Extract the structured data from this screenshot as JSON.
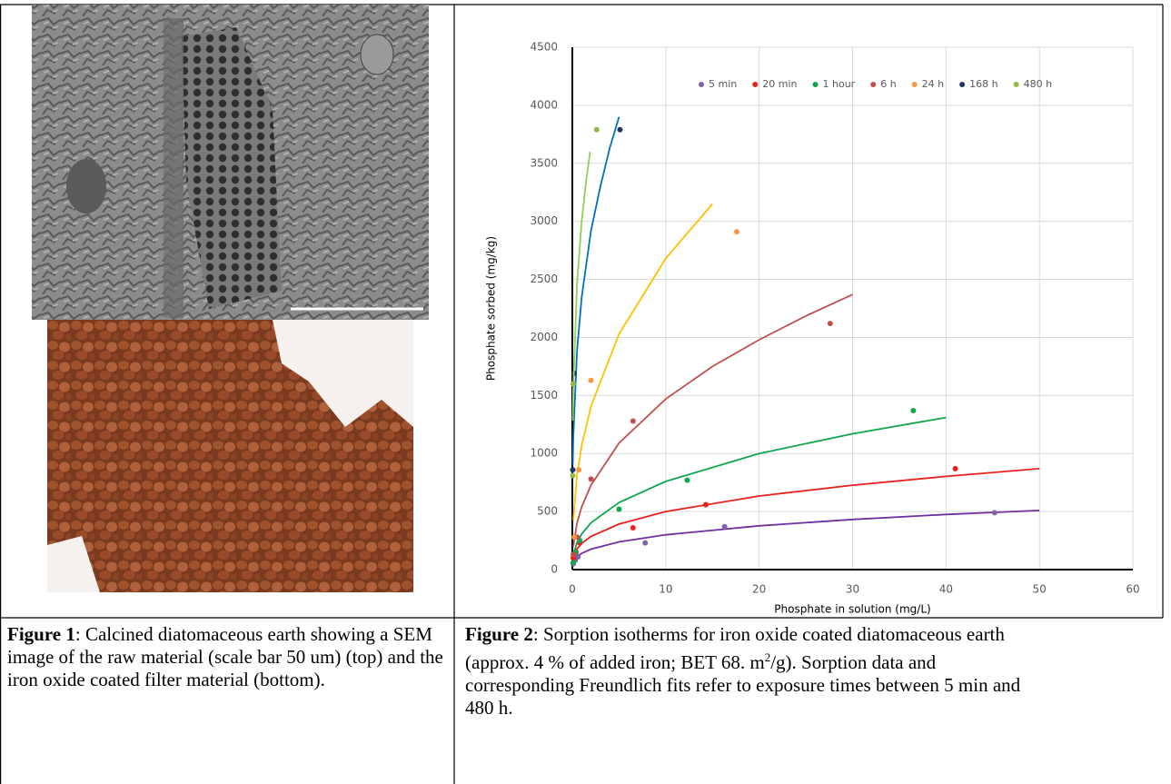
{
  "chart_data": {
    "type": "scatter",
    "xlabel": "Phosphate in solution (mg/L)",
    "ylabel": "Phosphate sorbed (mg/kg)",
    "xlim": [
      0,
      60
    ],
    "xticks": [
      0,
      10,
      20,
      30,
      40,
      50,
      60
    ],
    "ylim": [
      0,
      4500
    ],
    "yticks": [
      0,
      500,
      1000,
      1500,
      2000,
      2500,
      3000,
      3500,
      4000,
      4500
    ],
    "grid": true,
    "legend": "top-right",
    "series": [
      {
        "name": "5 min",
        "color": "#7f62a8",
        "x": [
          0.1,
          0.3,
          0.6,
          7.8,
          16.3,
          45.2
        ],
        "values": [
          50,
          80,
          110,
          230,
          370,
          490
        ],
        "fit": {
          "color": "#7030a0",
          "x": [
            0.1,
            0.5,
            1,
            2,
            5,
            10,
            20,
            30,
            40,
            50
          ],
          "values": [
            65,
            111,
            140,
            176,
            239,
            300,
            377,
            432,
            475,
            510
          ]
        }
      },
      {
        "name": "20 min",
        "color": "#e8211d",
        "x": [
          0.1,
          0.4,
          0.8,
          6.5,
          14.3,
          41
        ],
        "values": [
          100,
          150,
          230,
          360,
          560,
          870
        ],
        "fit": {
          "color": "#e8211d",
          "x": [
            0.1,
            0.5,
            1,
            2,
            5,
            10,
            20,
            30,
            40,
            50
          ],
          "values": [
            102,
            178,
            226,
            286,
            392,
            500,
            634,
            727,
            803,
            870
          ]
        }
      },
      {
        "name": "1 hour",
        "color": "#10a64f",
        "x": [
          0.1,
          0.3,
          0.8,
          5,
          12.3,
          36.5
        ],
        "values": [
          60,
          150,
          250,
          520,
          770,
          1370
        ],
        "fit": {
          "color": "#10a64f",
          "x": [
            0.1,
            0.5,
            1,
            2,
            5,
            10,
            20,
            30,
            40
          ],
          "values": [
            125,
            233,
            307,
            404,
            578,
            760,
            1000,
            1170,
            1310
          ]
        }
      },
      {
        "name": "6 h",
        "color": "#c0504d",
        "x": [
          0.1,
          0.5,
          2,
          6.5,
          27.6
        ],
        "values": [
          130,
          280,
          780,
          1280,
          2120
        ],
        "fit": {
          "color": "#c0504d",
          "x": [
            0.1,
            0.5,
            1,
            2,
            5,
            10,
            15,
            20,
            25,
            30
          ],
          "values": [
            198,
            400,
            540,
            728,
            1090,
            1470,
            1750,
            1980,
            2185,
            2370
          ]
        }
      },
      {
        "name": "24 h",
        "color": "#f79646",
        "x": [
          0.2,
          0.7,
          2,
          17.6
        ],
        "values": [
          280,
          860,
          1630,
          2910
        ],
        "fit": {
          "color": "#ffc000",
          "x": [
            0.1,
            0.5,
            1,
            2,
            5,
            10,
            15
          ],
          "values": [
            425,
            809,
            1067,
            1408,
            2030,
            2680,
            3150
          ]
        }
      },
      {
        "name": "168 h",
        "color": "#1f3864",
        "x": [
          0.05,
          0.2,
          5.1
        ],
        "values": [
          860,
          1690,
          3790
        ],
        "fit": {
          "color": "#0070c0",
          "x": [
            0.05,
            0.1,
            0.5,
            1,
            2,
            3,
            4,
            5
          ],
          "values": [
            905,
            1133,
            1880,
            2345,
            2920,
            3300,
            3630,
            3900
          ]
        }
      },
      {
        "name": "480 h",
        "color": "#8fbc44",
        "x": [
          0.05,
          0.1,
          2.6
        ],
        "values": [
          810,
          1600,
          3790
        ],
        "fit": {
          "color": "#92d050",
          "x": [
            0.05,
            0.1,
            0.5,
            1,
            1.5,
            1.9
          ],
          "values": [
            1283,
            1560,
            2460,
            3000,
            3360,
            3600
          ]
        }
      }
    ]
  },
  "captions": [
    {
      "label": "Figure 1",
      "text": ": Calcined diatomaceous earth showing a SEM image of the raw material (scale bar 50 um) (top) and the iron oxide coated filter material (bottom)."
    },
    {
      "label": "Figure 2",
      "text": ": Sorption isotherms for iron oxide coated diatomaceous earth (approx. 4 % of added iron; BET 68. m",
      "sup": "2",
      "text2": "/g). Sorption data and corresponding Freundlich fits refer to exposure times between 5 min and 480 h."
    }
  ]
}
